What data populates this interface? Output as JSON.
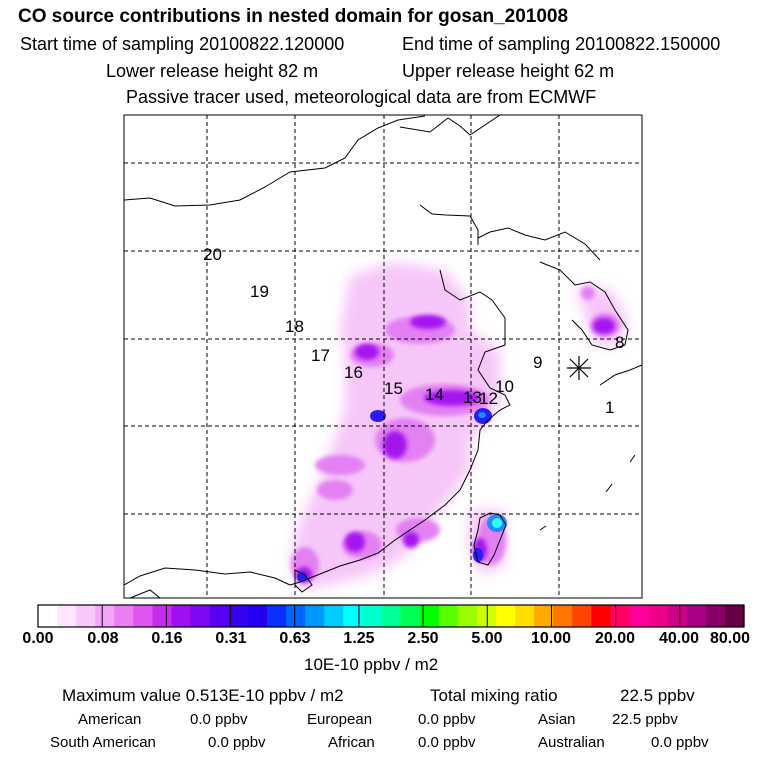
{
  "header": {
    "title": "CO  source contributions in nested domain for gosan_201008",
    "start_label": "Start time of sampling 20100822.120000",
    "end_label": "End time of sampling 20100822.150000",
    "lower_label": "Lower release height   82 m",
    "upper_label": "Upper release height   62 m",
    "note": "Passive tracer used, meteorological data are from ECMWF"
  },
  "map": {
    "trajectory_labels": [
      "20",
      "19",
      "18",
      "17",
      "16",
      "15",
      "14",
      "13",
      "12",
      "10",
      "9",
      "8",
      "1"
    ],
    "receptor_marker": "asterisk-icon"
  },
  "colorbar": {
    "ticks": [
      "0.00",
      "0.08",
      "0.16",
      "0.31",
      "0.63",
      "1.25",
      "2.50",
      "5.00",
      "10.00",
      "20.00",
      "40.00",
      "80.00"
    ],
    "unit": "10E-10 ppbv / m2",
    "colors": [
      "#ffffff",
      "#fde6fd",
      "#f9c8fb",
      "#f3a6f8",
      "#ec7ef4",
      "#df53f0",
      "#c82bf0",
      "#a010f0",
      "#7f08f4",
      "#5a00f2",
      "#3a00f0",
      "#2200f0",
      "#0a30ff",
      "#0066ff",
      "#0099ff",
      "#00ccff",
      "#00ffff",
      "#00ffcc",
      "#00ff99",
      "#00ff55",
      "#00ff00",
      "#55ff00",
      "#99ff00",
      "#ccff00",
      "#ffff00",
      "#ffdd00",
      "#ffaa00",
      "#ff7700",
      "#ff4400",
      "#ff0000",
      "#ff0066",
      "#ff0099",
      "#ee0088",
      "#cc0088",
      "#aa0088",
      "#880066",
      "#660044"
    ]
  },
  "summary": {
    "max_label": "Maximum value  0.513E-10 ppbv / m2",
    "total_label": "Total mixing ratio",
    "total_value": "22.5 ppbv",
    "regions": [
      {
        "name": "American",
        "value": "0.0 ppbv"
      },
      {
        "name": "European",
        "value": "0.0 ppbv"
      },
      {
        "name": "Asian",
        "value": "22.5 ppbv"
      },
      {
        "name": "South American",
        "value": "0.0 ppbv"
      },
      {
        "name": "African",
        "value": "0.0 ppbv"
      },
      {
        "name": "Australian",
        "value": "0.0 ppbv"
      }
    ]
  }
}
